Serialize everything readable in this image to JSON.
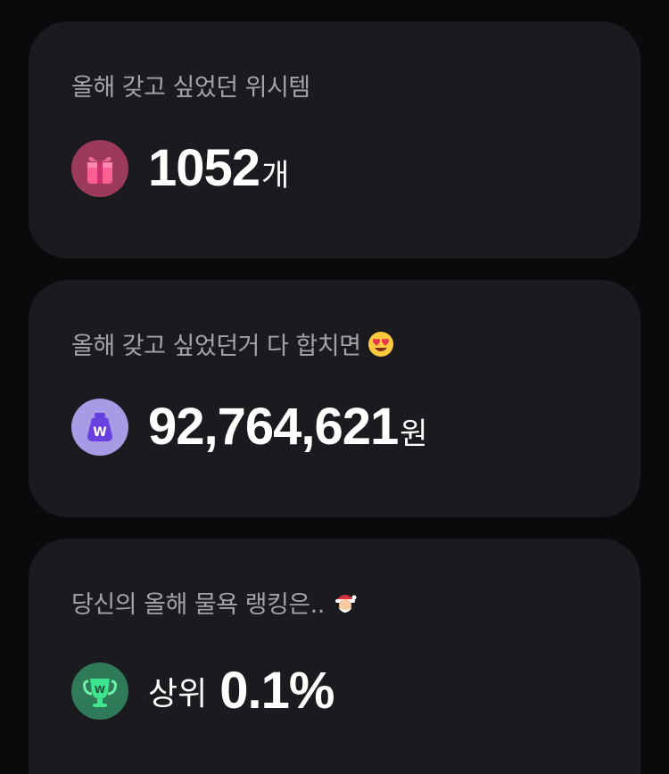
{
  "cards": {
    "wishlist": {
      "title": "올해 갖고 싶었던 위시템",
      "value": "1052",
      "unit": "개",
      "icon": "gift-icon",
      "icon_bg": "#9c3a5c"
    },
    "total": {
      "title": "올해 갖고 싶었던거 다 합치면",
      "title_emoji": "heart-eyes-emoji",
      "value": "92,764,621",
      "unit": "원",
      "icon": "won-pouch-icon",
      "icon_bg": "#a79be6"
    },
    "ranking": {
      "title": "당신의 올해 물욕 랭킹은..",
      "title_emoji": "santa-emoji",
      "prefix": "상위",
      "value": "0.1%",
      "icon": "trophy-icon",
      "icon_bg": "#2f7a58"
    }
  },
  "colors": {
    "background": "#0a0a0c",
    "card": "#1b1b1f",
    "muted_text": "#a3a3a8",
    "primary_text": "#ffffff"
  }
}
